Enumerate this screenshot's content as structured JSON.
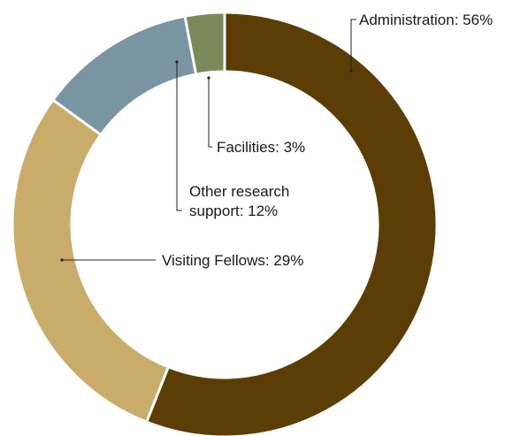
{
  "chart_data": {
    "type": "pie",
    "donut": true,
    "slices": [
      {
        "label": "Administration",
        "value": 56,
        "color": "#5c3d06",
        "text": "Administration: 56%"
      },
      {
        "label": "Visiting Fellows",
        "value": 29,
        "color": "#c9ab6a",
        "text": "Visiting Fellows: 29%"
      },
      {
        "label": "Other research support",
        "value": 12,
        "color": "#7995a1",
        "text_lines": [
          "Other research",
          "support: 12%"
        ]
      },
      {
        "label": "Facilities",
        "value": 3,
        "color": "#7b8a5a",
        "text": "Facilities: 3%"
      }
    ]
  }
}
